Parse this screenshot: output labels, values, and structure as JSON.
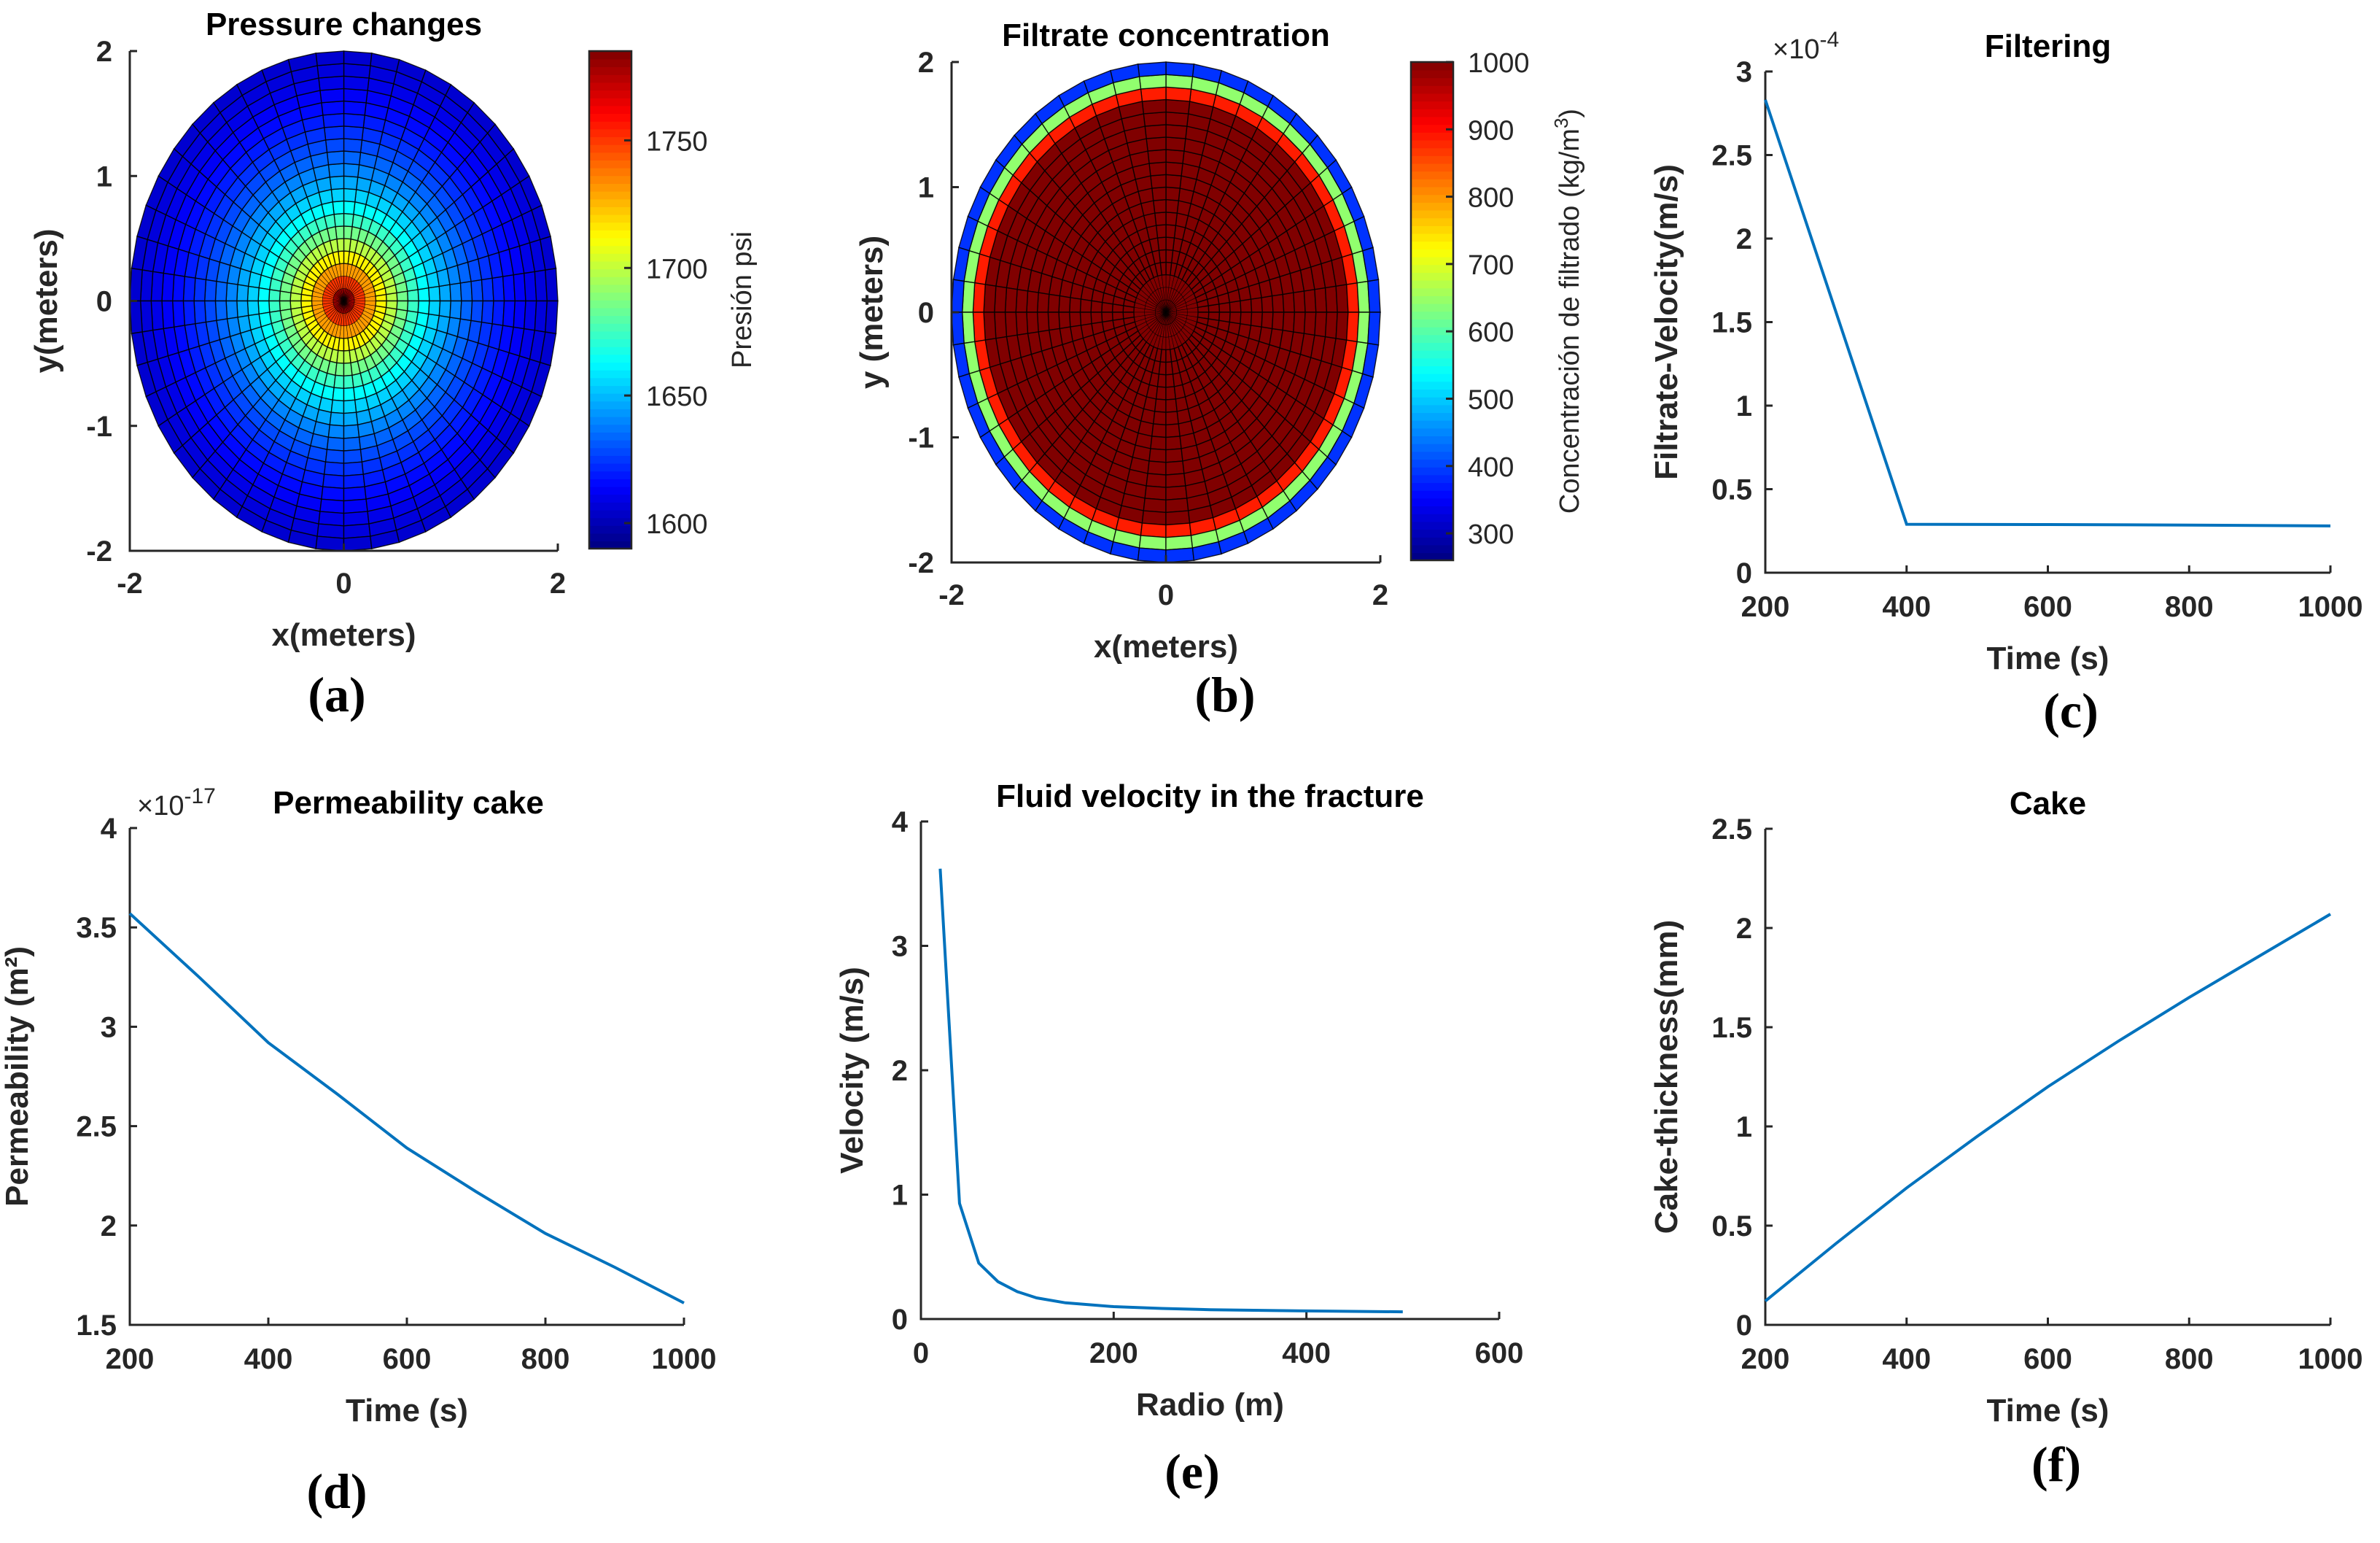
{
  "colors": {
    "series": "#0072BD",
    "axis": "#262626",
    "grid_line": "#000000"
  },
  "chart_data": [
    {
      "id": "a",
      "panel_label": "(a)",
      "type": "heatmap",
      "title": "Pressure changes",
      "xlabel": "x(meters)",
      "ylabel": "y(meters)",
      "xlim": [
        -2,
        2
      ],
      "ylim": [
        -2,
        2
      ],
      "xticks": [
        "-2",
        "0",
        "2"
      ],
      "yticks": [
        "-2",
        "-1",
        "0",
        "1",
        "2"
      ],
      "radius": 2,
      "rings": 20,
      "sectors": 48,
      "field": {
        "kind": "radial_decay",
        "center_value": 1785,
        "edge_value": 1590
      },
      "colorbar": {
        "label": "Presión psi",
        "min": 1590,
        "max": 1785,
        "ticks": [
          "1600",
          "1650",
          "1700",
          "1750"
        ],
        "tick_values": [
          1600,
          1650,
          1700,
          1750
        ]
      }
    },
    {
      "id": "b",
      "panel_label": "(b)",
      "type": "heatmap",
      "title": "Filtrate concentration",
      "xlabel": "x(meters)",
      "ylabel": "y (meters)",
      "xlim": [
        -2,
        2
      ],
      "ylim": [
        -2,
        2
      ],
      "xticks": [
        "-2",
        "0",
        "2"
      ],
      "yticks": [
        "-2",
        "-1",
        "0",
        "1",
        "2"
      ],
      "radius": 2,
      "rings": 20,
      "sectors": 48,
      "field": {
        "kind": "plateau",
        "center_value": 1000,
        "edge_value": 260,
        "plateau_radius": 0.85
      },
      "colorbar": {
        "label_main": "Concentración de filtrado",
        "label_unit": "(kg/m",
        "label_sup": "3",
        "label_close": ")",
        "min": 260,
        "max": 1000,
        "ticks": [
          "300",
          "400",
          "500",
          "600",
          "700",
          "800",
          "900",
          "1000"
        ],
        "tick_values": [
          300,
          400,
          500,
          600,
          700,
          800,
          900,
          1000
        ]
      }
    },
    {
      "id": "c",
      "panel_label": "(c)",
      "type": "line",
      "title": "Filtering",
      "xlabel": "Time (s)",
      "ylabel": "Filtrate-Velocity(m/s)",
      "exponent_prefix": "×10",
      "exponent": "-4",
      "xlim": [
        200,
        1000
      ],
      "ylim": [
        0,
        3
      ],
      "xticks": [
        200,
        400,
        600,
        800,
        1000
      ],
      "yticks": [
        0,
        0.5,
        1,
        1.5,
        2,
        2.5,
        3
      ],
      "x": [
        200,
        400,
        600,
        800,
        1000
      ],
      "y": [
        2.83,
        0.29,
        0.288,
        0.285,
        0.28
      ]
    },
    {
      "id": "d",
      "panel_label": "(d)",
      "type": "line",
      "title": "Permeability cake",
      "xlabel": "Time (s)",
      "ylabel": "Permeability (m²)",
      "exponent_prefix": "×10",
      "exponent": "-17",
      "xlim": [
        200,
        1000
      ],
      "ylim": [
        1.5,
        4
      ],
      "xticks": [
        200,
        400,
        600,
        800,
        1000
      ],
      "yticks": [
        1.5,
        2,
        2.5,
        3,
        3.5,
        4
      ],
      "x": [
        200,
        300,
        400,
        500,
        600,
        700,
        800,
        900,
        1000
      ],
      "y": [
        3.57,
        3.25,
        2.92,
        2.66,
        2.39,
        2.17,
        1.96,
        1.79,
        1.61
      ]
    },
    {
      "id": "e",
      "panel_label": "(e)",
      "type": "line",
      "title": "Fluid velocity in the fracture",
      "xlabel": "Radio (m)",
      "ylabel": "Velocity (m/s)",
      "xlim": [
        0,
        600
      ],
      "ylim": [
        0,
        4
      ],
      "xticks": [
        0,
        200,
        400,
        600
      ],
      "yticks": [
        0,
        1,
        2,
        3,
        4
      ],
      "x": [
        20,
        40,
        60,
        80,
        100,
        120,
        150,
        200,
        250,
        300,
        400,
        500
      ],
      "y": [
        3.62,
        0.93,
        0.45,
        0.3,
        0.22,
        0.17,
        0.13,
        0.1,
        0.085,
        0.075,
        0.065,
        0.058
      ]
    },
    {
      "id": "f",
      "panel_label": "(f)",
      "type": "line",
      "title": "Cake",
      "xlabel": "Time (s)",
      "ylabel": "Cake-thickness(mm)",
      "xlim": [
        200,
        1000
      ],
      "ylim": [
        0,
        2.5
      ],
      "xticks": [
        200,
        400,
        600,
        800,
        1000
      ],
      "yticks": [
        0,
        0.5,
        1,
        1.5,
        2,
        2.5
      ],
      "x": [
        200,
        300,
        400,
        500,
        600,
        700,
        800,
        900,
        1000
      ],
      "y": [
        0.12,
        0.41,
        0.69,
        0.95,
        1.2,
        1.43,
        1.65,
        1.86,
        2.07
      ]
    }
  ]
}
